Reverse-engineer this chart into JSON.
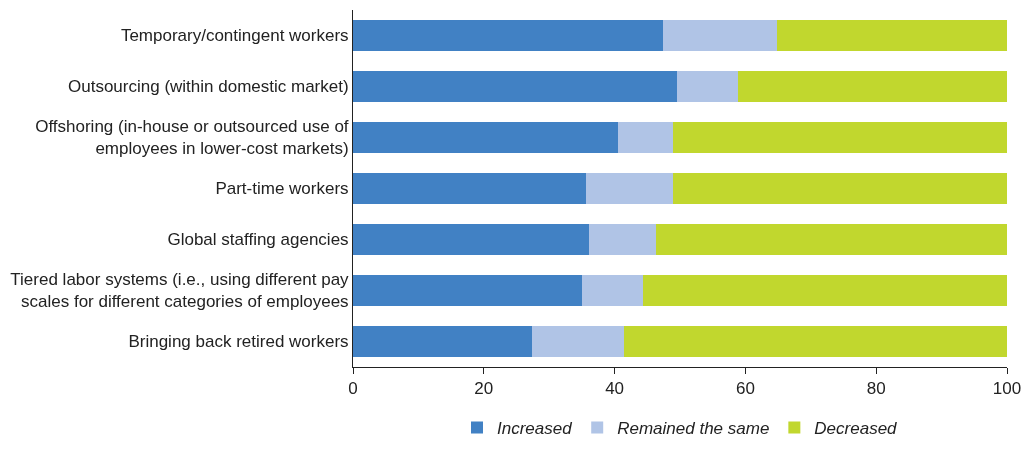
{
  "chart_data": {
    "type": "bar",
    "orientation": "horizontal",
    "stacked": true,
    "categories": [
      "Temporary/contingent workers",
      "Outsourcing (within domestic market)",
      "Offshoring (in-house or outsourced use of\nemployees in lower-cost markets)",
      "Part-time workers",
      "Global staffing agencies",
      "Tiered labor systems (i.e., using different pay\nscales for different categories of employees",
      "Bringing back retired workers"
    ],
    "series": [
      {
        "name": "Increased",
        "color": "#4181c4",
        "values": [
          47.4,
          49.5,
          40.5,
          35.6,
          36.1,
          35.0,
          27.4
        ]
      },
      {
        "name": "Remained the same",
        "color": "#b0c4e6",
        "values": [
          17.4,
          9.4,
          8.4,
          13.3,
          10.3,
          9.3,
          14.1
        ]
      },
      {
        "name": "Decreased",
        "color": "#c1d72e",
        "values": [
          35.2,
          41.1,
          51.1,
          51.1,
          53.6,
          55.7,
          58.5
        ]
      }
    ],
    "xlim": [
      0,
      100
    ],
    "xticks": [
      0,
      20,
      40,
      60,
      80,
      100
    ],
    "legend": "bottom"
  }
}
